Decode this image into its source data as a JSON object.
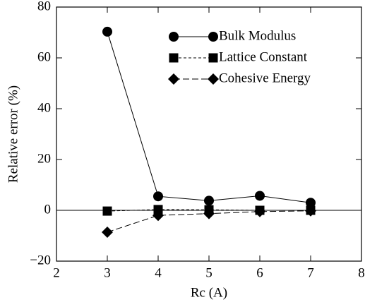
{
  "chart_data": {
    "type": "line",
    "x_label": "Rc (A)",
    "y_label": "Relative error (%)",
    "x": [
      3,
      4,
      5,
      6,
      7
    ],
    "series": [
      {
        "name": "Bulk Modulus",
        "color": "#000000",
        "marker": "circle",
        "dash": "solid",
        "values": [
          70.3,
          5.5,
          3.8,
          5.7,
          3.0
        ]
      },
      {
        "name": "Lattice Constant",
        "color": "#000000",
        "marker": "square",
        "dash": "short",
        "values": [
          -0.3,
          0.3,
          0.2,
          0.0,
          0.0
        ]
      },
      {
        "name": "Cohesive Energy",
        "color": "#000000",
        "marker": "diamond",
        "dash": "long",
        "values": [
          -8.6,
          -2.0,
          -1.3,
          -0.5,
          -0.2
        ]
      }
    ],
    "xlim": [
      2,
      8
    ],
    "xticks": [
      2,
      3,
      4,
      5,
      6,
      7,
      8
    ],
    "ylim": [
      -20,
      80
    ],
    "yticks": [
      {
        "value": -20,
        "label": "−20"
      },
      0,
      20,
      40,
      60,
      80
    ],
    "grid": false,
    "legend": "upper right"
  }
}
